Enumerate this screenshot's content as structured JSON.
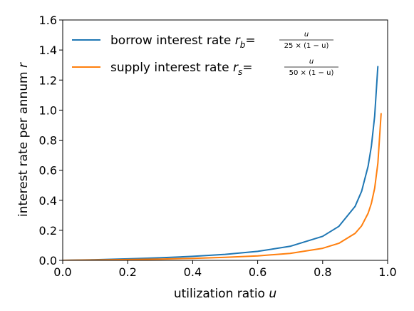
{
  "chart_data": {
    "type": "line",
    "xlabel": "utilization ratio",
    "xlabel_var": "u",
    "ylabel": "interest rate per annum",
    "ylabel_var": "r",
    "xlim": [
      0.0,
      1.0
    ],
    "ylim": [
      0.0,
      1.6
    ],
    "xticks": [
      "0.0",
      "0.2",
      "0.4",
      "0.6",
      "0.8",
      "1.0"
    ],
    "yticks": [
      "0.0",
      "0.2",
      "0.4",
      "0.6",
      "0.8",
      "1.0",
      "1.2",
      "1.4",
      "1.6"
    ],
    "grid": false,
    "legend_position": "upper-left",
    "series": [
      {
        "name": "borrow interest rate",
        "symbol": "r",
        "subscript": "b",
        "formula_numerator": "u",
        "formula_denominator": "25 × (1 − u)",
        "color": "#1f77b4",
        "x": [
          0.0,
          0.1,
          0.2,
          0.3,
          0.4,
          0.5,
          0.6,
          0.7,
          0.8,
          0.85,
          0.9,
          0.92,
          0.94,
          0.95,
          0.96,
          0.97
        ],
        "y": [
          0.0,
          0.0044,
          0.01,
          0.0171,
          0.0267,
          0.04,
          0.06,
          0.0933,
          0.16,
          0.2267,
          0.36,
          0.46,
          0.6267,
          0.76,
          0.96,
          1.2933
        ]
      },
      {
        "name": "supply interest rate",
        "symbol": "r",
        "subscript": "s",
        "formula_numerator": "u",
        "formula_denominator": "50 × (1 − u)",
        "color": "#ff7f0e",
        "x": [
          0.0,
          0.1,
          0.2,
          0.3,
          0.4,
          0.5,
          0.6,
          0.7,
          0.8,
          0.85,
          0.9,
          0.92,
          0.94,
          0.95,
          0.96,
          0.97,
          0.98
        ],
        "y": [
          0.0,
          0.0022,
          0.005,
          0.0086,
          0.0133,
          0.02,
          0.03,
          0.0467,
          0.08,
          0.1133,
          0.18,
          0.23,
          0.3133,
          0.38,
          0.48,
          0.6467,
          0.98
        ]
      }
    ]
  }
}
